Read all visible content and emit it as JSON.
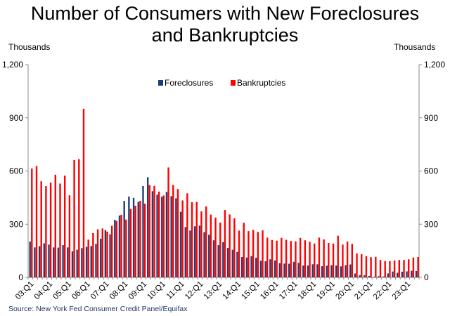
{
  "chart_data": {
    "type": "bar",
    "title": "Number of Consumers with New Foreclosures and Bankruptcies",
    "title_lines": [
      "Number of Consumers with New Foreclosures",
      "and Bankruptcies"
    ],
    "ylabel_left": "Thousands",
    "ylabel_right": "Thousands",
    "ylim": [
      0,
      1200
    ],
    "yticks": [
      0,
      300,
      600,
      900,
      1200
    ],
    "ytick_labels": [
      "0",
      "300",
      "600",
      "900",
      "1,200"
    ],
    "grid": false,
    "legend_placement": "top-center",
    "source": "Source: New York Fed Consumer Credit Panel/Equifax",
    "x_tick_labels": [
      "03:Q1",
      "04:Q1",
      "05:Q1",
      "06:Q1",
      "07:Q1",
      "08:Q1",
      "09:Q1",
      "10:Q1",
      "11:Q1",
      "12:Q1",
      "13:Q1",
      "14:Q1",
      "15:Q1",
      "16:Q1",
      "17:Q1",
      "18:Q1",
      "19:Q1",
      "20:Q1",
      "21:Q1",
      "22:Q1",
      "23:Q1"
    ],
    "first_quarter": "03:Q1",
    "last_quarter": "23:Q3",
    "series": [
      {
        "name": "Foreclosures",
        "color": "#1f3f74",
        "values": [
          202,
          169,
          176,
          192,
          185,
          169,
          168,
          182,
          169,
          147,
          156,
          165,
          172,
          177,
          189,
          218,
          267,
          243,
          325,
          349,
          431,
          456,
          448,
          426,
          515,
          565,
          486,
          466,
          455,
          482,
          458,
          446,
          370,
          284,
          264,
          288,
          292,
          255,
          240,
          209,
          182,
          199,
          166,
          156,
          144,
          115,
          112,
          120,
          111,
          94,
          91,
          102,
          95,
          80,
          78,
          77,
          88,
          82,
          67,
          67,
          74,
          74,
          63,
          66,
          69,
          67,
          62,
          69,
          73,
          22,
          13,
          12,
          8,
          4,
          7,
          5,
          22,
          33,
          26,
          32,
          34,
          37,
          36
        ]
      },
      {
        "name": "Bankruptcies",
        "color": "#ff0000",
        "values": [
          614,
          628,
          542,
          515,
          535,
          579,
          529,
          574,
          463,
          662,
          667,
          951,
          213,
          250,
          271,
          276,
          258,
          291,
          318,
          353,
          326,
          386,
          404,
          432,
          416,
          521,
          516,
          484,
          462,
          620,
          521,
          498,
          434,
          474,
          424,
          425,
          372,
          400,
          354,
          337,
          309,
          380,
          355,
          333,
          264,
          308,
          261,
          268,
          256,
          265,
          224,
          211,
          207,
          223,
          212,
          205,
          203,
          223,
          209,
          201,
          191,
          224,
          214,
          194,
          191,
          235,
          185,
          202,
          189,
          135,
          131,
          119,
          114,
          116,
          98,
          92,
          91,
          95,
          98,
          98,
          102,
          112,
          115
        ]
      }
    ]
  }
}
